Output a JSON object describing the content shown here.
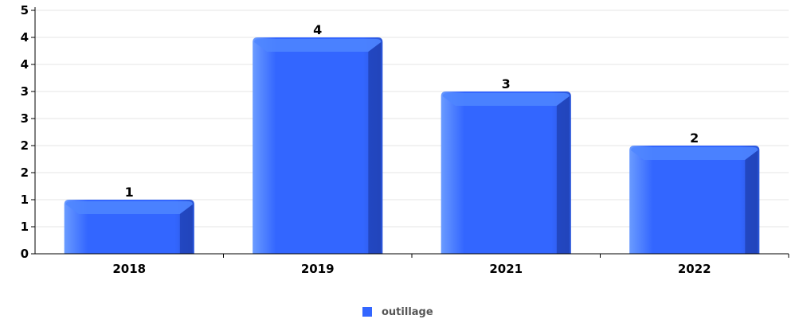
{
  "chart_data": {
    "type": "bar",
    "categories": [
      "2018",
      "2019",
      "2021",
      "2022"
    ],
    "series": [
      {
        "name": "outillage",
        "values": [
          1,
          4,
          3,
          2
        ]
      }
    ],
    "data_labels": [
      "1",
      "4",
      "3",
      "2"
    ],
    "y_tick_labels": [
      "0",
      "1",
      "1",
      "2",
      "2",
      "3",
      "3",
      "4",
      "4",
      "5"
    ],
    "ylim": [
      0,
      4.5
    ],
    "grid": true,
    "legend": "bottom-center",
    "colors": {
      "bar": "#3366ff",
      "bar_light": "#5a8cff",
      "bar_dark": "#1f3fb0",
      "grid": "#e6e6e6",
      "axis": "#000000"
    }
  }
}
